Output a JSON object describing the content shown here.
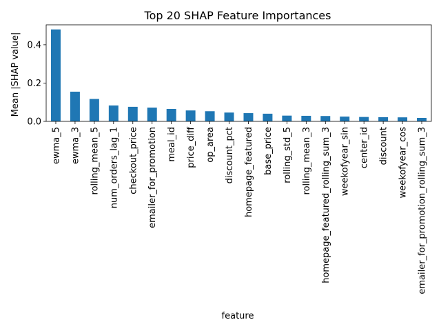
{
  "chart_data": {
    "type": "bar",
    "title": "Top 20 SHAP Feature Importances",
    "xlabel": "feature",
    "ylabel": "Mean |SHAP value|",
    "ylim": [
      0,
      0.504
    ],
    "yticks": [
      0.0,
      0.2,
      0.4
    ],
    "ytick_labels": [
      "0.0",
      "0.2",
      "0.4"
    ],
    "grid": false,
    "legend": "none",
    "bar_color": "#1f77b4",
    "categories": [
      "ewma_5",
      "ewma_3",
      "rolling_mean_5",
      "num_orders_lag_1",
      "checkout_price",
      "emailer_for_promotion",
      "meal_id",
      "price_diff",
      "op_area",
      "discount_pct",
      "homepage_featured",
      "base_price",
      "rolling_std_5",
      "rolling_mean_3",
      "homepage_featured_rolling_sum_3",
      "weekofyear_sin",
      "center_id",
      "discount",
      "weekofyear_cos",
      "emailer_for_promotion_rolling_sum_3"
    ],
    "values": [
      0.48,
      0.155,
      0.117,
      0.083,
      0.076,
      0.072,
      0.065,
      0.057,
      0.053,
      0.046,
      0.043,
      0.04,
      0.03,
      0.029,
      0.028,
      0.025,
      0.023,
      0.022,
      0.021,
      0.018
    ]
  }
}
